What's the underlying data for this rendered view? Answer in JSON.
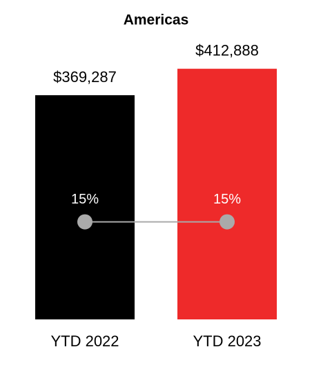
{
  "chart_data": {
    "type": "bar",
    "title": "Americas",
    "categories": [
      "YTD 2022",
      "YTD 2023"
    ],
    "ylim": [
      0,
      450000
    ],
    "y2lim": [
      0,
      42
    ],
    "series": [
      {
        "type": "bar",
        "colors": [
          "#000000",
          "#ee2a2a"
        ],
        "values": [
          369287,
          412888
        ],
        "value_labels": [
          "$369,287",
          "$412,888"
        ]
      },
      {
        "type": "line",
        "axis": "y2",
        "color": "#aaaaaa",
        "values": [
          15,
          15
        ],
        "value_labels": [
          "15%",
          "15%"
        ]
      }
    ]
  }
}
